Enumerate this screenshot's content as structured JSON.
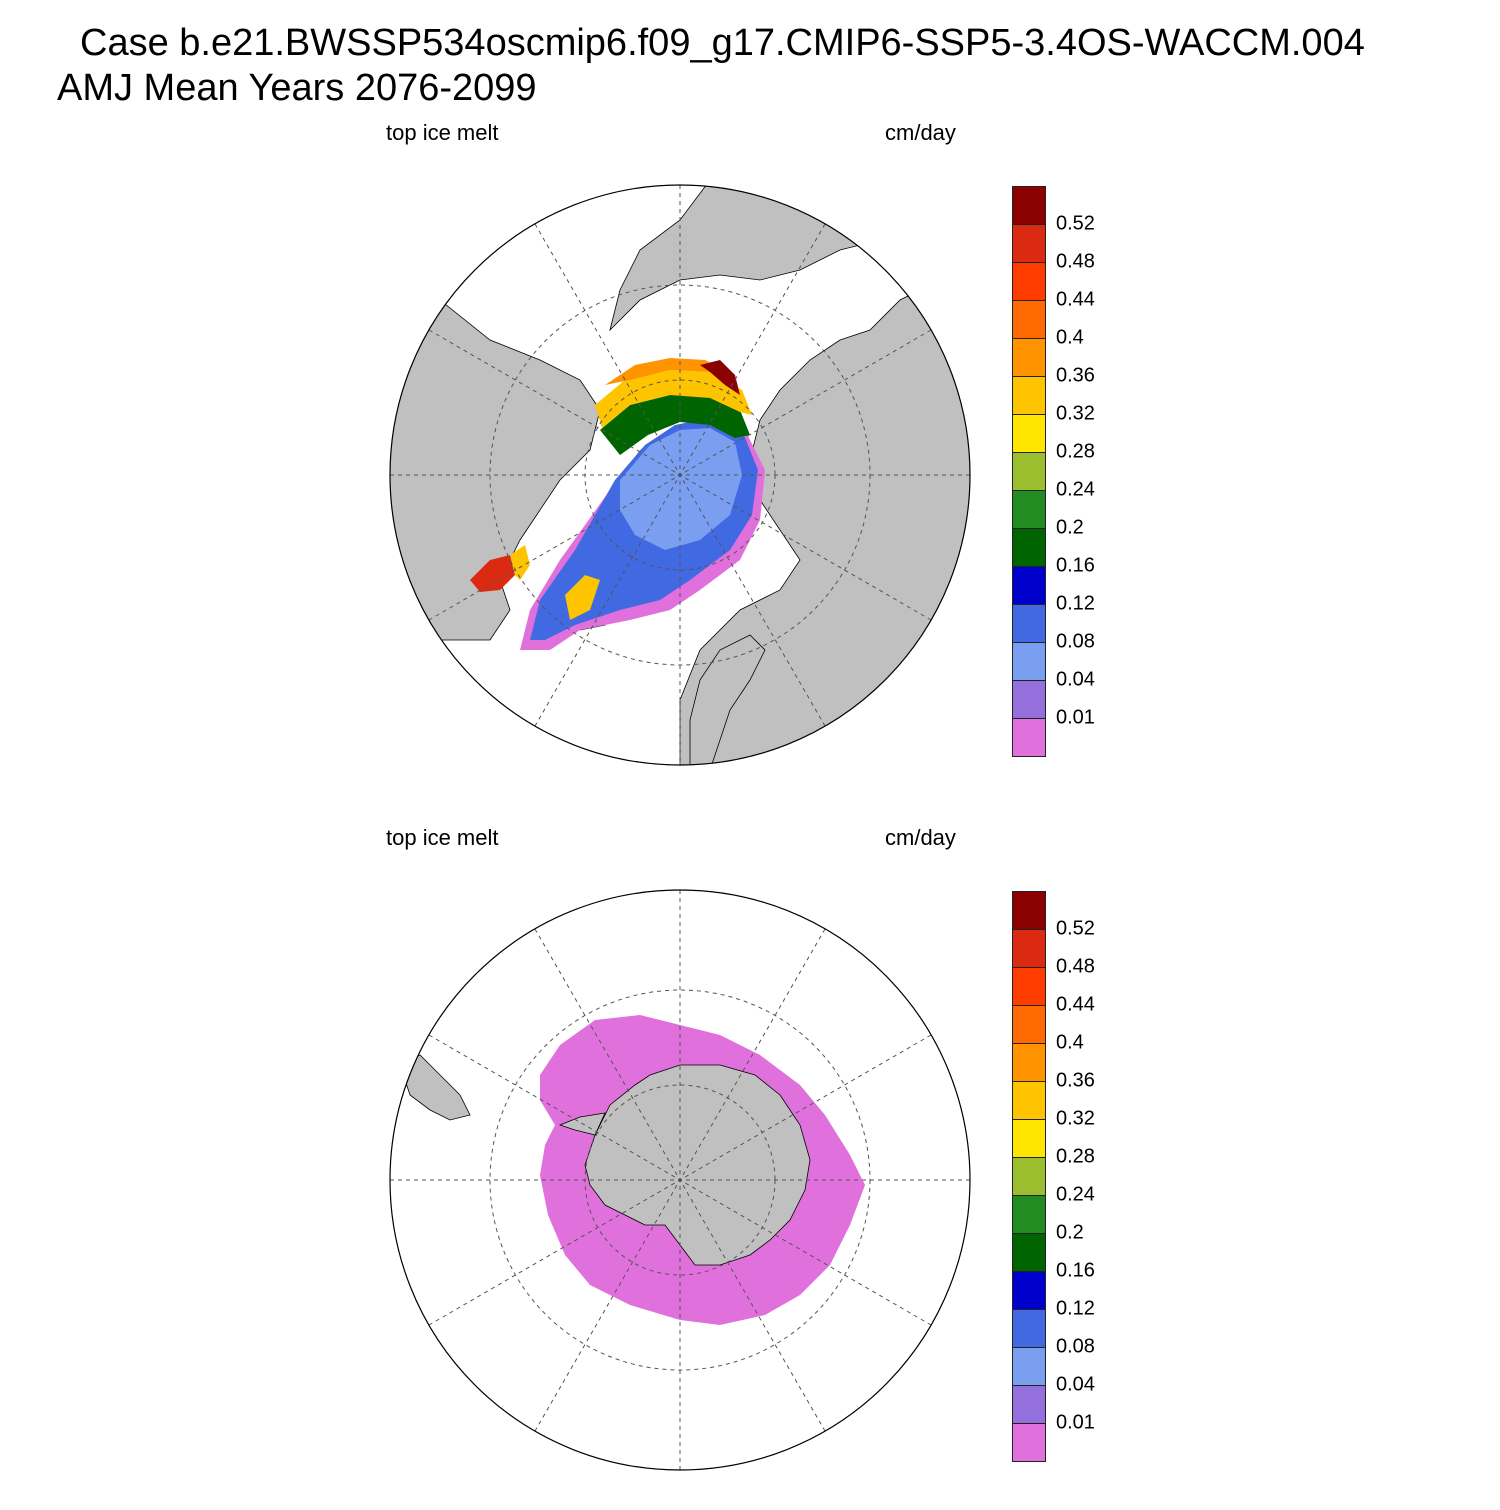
{
  "header": {
    "title_line1": "Case b.e21.BWSSP534oscmip6.f09_g17.CMIP6-SSP5-3.4OS-WACCM.004",
    "title_line2": "AMJ Mean   Years 2076-2099"
  },
  "panels": [
    {
      "id": "north",
      "left_label": "top ice melt",
      "right_label": "cm/day",
      "hemisphere": "Northern Hemisphere polar stereographic"
    },
    {
      "id": "south",
      "left_label": "top ice melt",
      "right_label": "cm/day",
      "hemisphere": "Southern Hemisphere polar stereographic"
    }
  ],
  "colorbar": {
    "labels": [
      "0.52",
      "0.48",
      "0.44",
      "0.4",
      "0.36",
      "0.32",
      "0.28",
      "0.24",
      "0.2",
      "0.16",
      "0.12",
      "0.08",
      "0.04",
      "0.01"
    ],
    "colors": [
      "#8b0000",
      "#dc2a12",
      "#ff3c00",
      "#ff6a00",
      "#ff9400",
      "#ffc400",
      "#ffe600",
      "#9cbf2f",
      "#228b22",
      "#006400",
      "#0000cd",
      "#4169e1",
      "#7b9ff0",
      "#9370db",
      "#e070dc"
    ]
  },
  "colors": {
    "land": "#c0c0c0",
    "ocean": "#ffffff"
  }
}
